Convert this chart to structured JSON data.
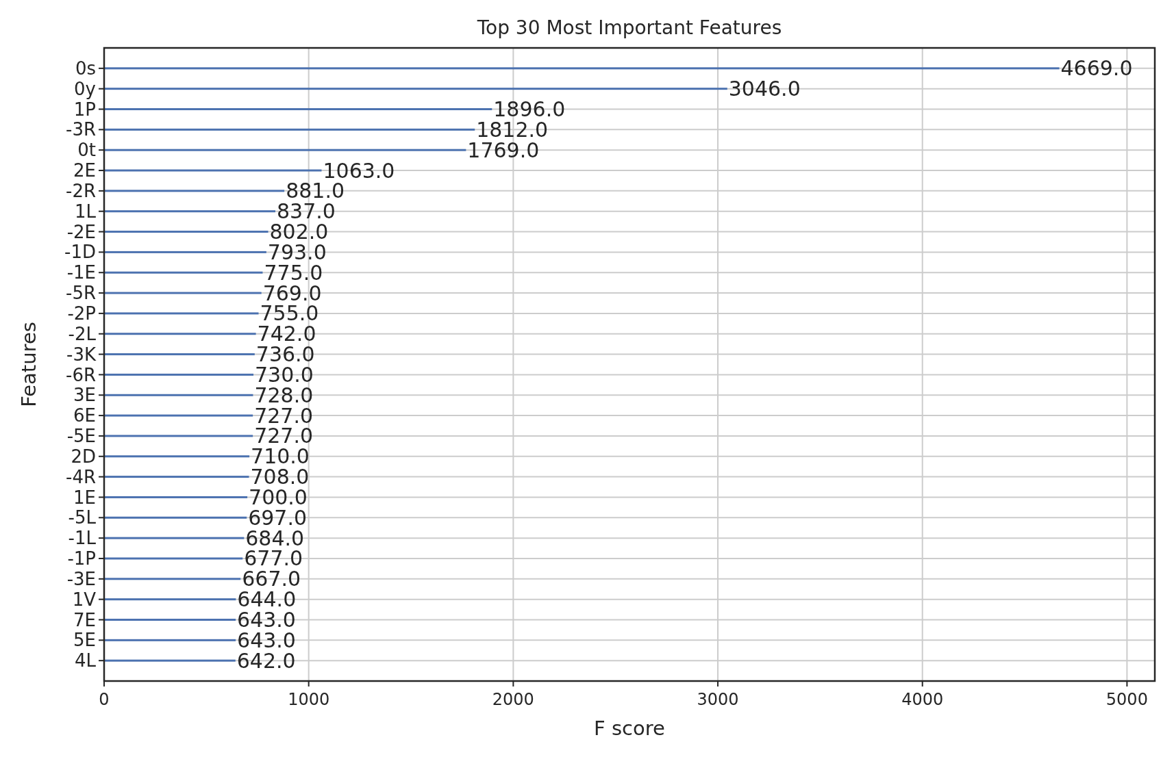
{
  "chart_data": {
    "type": "bar",
    "orientation": "horizontal",
    "title": "Top 30 Most Important Features",
    "xlabel": "F score",
    "ylabel": "Features",
    "categories": [
      "0s",
      "0y",
      "1P",
      "-3R",
      "0t",
      "2E",
      "-2R",
      "1L",
      "-2E",
      "-1D",
      "-1E",
      "-5R",
      "-2P",
      "-2L",
      "-3K",
      "-6R",
      "3E",
      "6E",
      "-5E",
      "2D",
      "-4R",
      "1E",
      "-5L",
      "-1L",
      "-1P",
      "-3E",
      "1V",
      "7E",
      "5E",
      "4L"
    ],
    "values": [
      4669,
      3046,
      1896,
      1812,
      1769,
      1063,
      881,
      837,
      802,
      793,
      775,
      769,
      755,
      742,
      736,
      730,
      728,
      727,
      727,
      710,
      708,
      700,
      697,
      684,
      677,
      667,
      644,
      643,
      643,
      642
    ],
    "value_labels": [
      "4669.0",
      "3046.0",
      "1896.0",
      "1812.0",
      "1769.0",
      "1063.0",
      "881.0",
      "837.0",
      "802.0",
      "793.0",
      "775.0",
      "769.0",
      "755.0",
      "742.0",
      "736.0",
      "730.0",
      "728.0",
      "727.0",
      "727.0",
      "710.0",
      "708.0",
      "700.0",
      "697.0",
      "684.0",
      "677.0",
      "667.0",
      "644.0",
      "643.0",
      "643.0",
      "642.0"
    ],
    "color": "#4c72b0",
    "xlim": [
      0,
      5136
    ],
    "xticks": [
      0,
      1000,
      2000,
      3000,
      4000,
      5000
    ],
    "grid": true
  }
}
